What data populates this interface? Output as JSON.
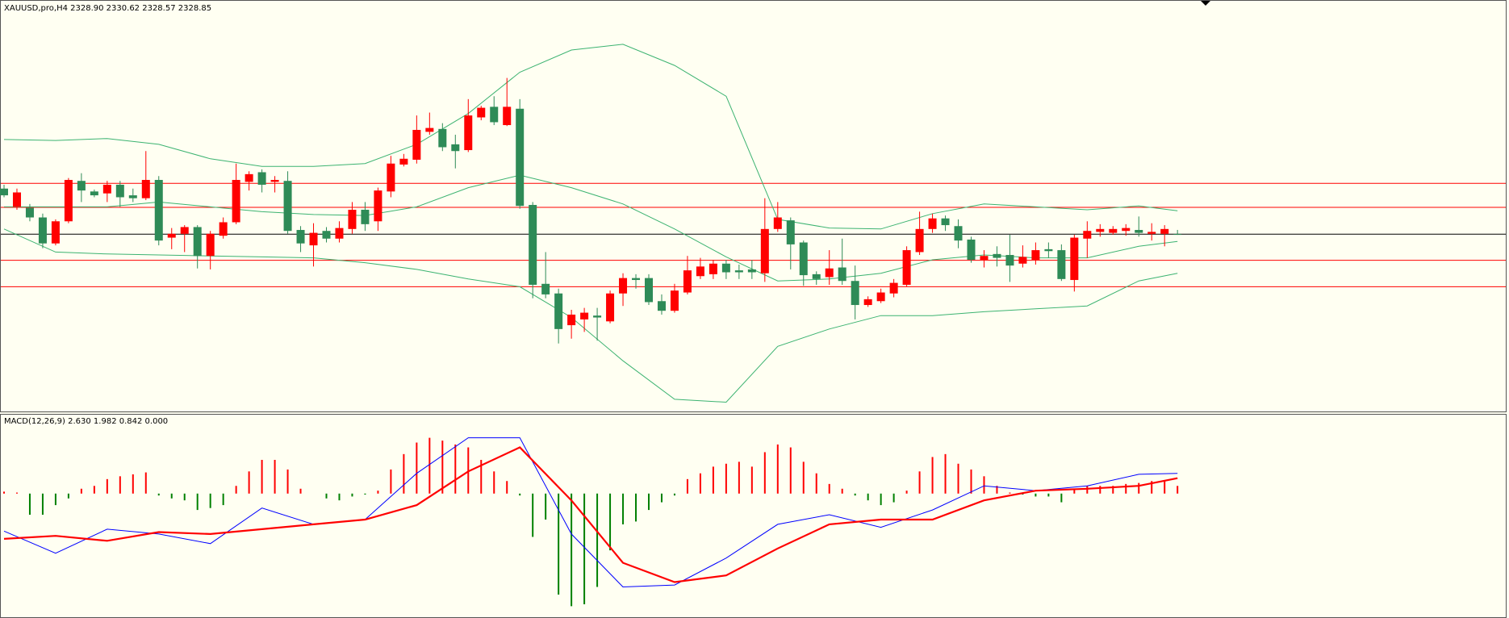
{
  "chart_data": [
    {
      "type": "candlestick",
      "title": "XAUUSD,pro,H4  2328.90 2330.62 2328.57 2328.85",
      "up_color": "#ff0000",
      "down_color": "#2e8b57",
      "ylim": [
        2255,
        2425
      ],
      "levels": {
        "values": [
          2350,
          2340,
          2318,
          2307
        ],
        "color": "#ff0000"
      },
      "bid_line": {
        "value": 2328.85,
        "color": "#000000"
      },
      "ohlc": [
        [
          2347.8,
          2349.4,
          2344.2,
          2345.0
        ],
        [
          2340.2,
          2347.8,
          2339.0,
          2346.2
        ],
        [
          2339.8,
          2341.4,
          2334.2,
          2335.8
        ],
        [
          2335.8,
          2337.4,
          2323.0,
          2325.0
        ],
        [
          2325.0,
          2335.0,
          2324.2,
          2334.2
        ],
        [
          2334.2,
          2352.2,
          2333.4,
          2351.4
        ],
        [
          2351.0,
          2354.2,
          2342.2,
          2347.0
        ],
        [
          2346.6,
          2347.4,
          2344.2,
          2345.0
        ],
        [
          2345.8,
          2351.0,
          2342.2,
          2349.4
        ],
        [
          2349.4,
          2351.0,
          2340.2,
          2344.2
        ],
        [
          2345.0,
          2347.8,
          2342.2,
          2343.8
        ],
        [
          2343.8,
          2363.4,
          2343.0,
          2351.4
        ],
        [
          2351.4,
          2353.0,
          2324.2,
          2326.2
        ],
        [
          2327.4,
          2331.4,
          2322.6,
          2329.0
        ],
        [
          2329.0,
          2332.6,
          2321.4,
          2331.8
        ],
        [
          2331.8,
          2332.6,
          2314.6,
          2319.8
        ],
        [
          2319.8,
          2330.2,
          2314.2,
          2329.0
        ],
        [
          2328.2,
          2335.8,
          2327.0,
          2333.8
        ],
        [
          2333.8,
          2358.2,
          2333.0,
          2351.4
        ],
        [
          2350.6,
          2355.0,
          2347.0,
          2353.8
        ],
        [
          2354.6,
          2355.8,
          2346.2,
          2349.4
        ],
        [
          2350.6,
          2353.0,
          2346.2,
          2351.4
        ],
        [
          2351.0,
          2355.0,
          2329.0,
          2330.2
        ],
        [
          2330.6,
          2332.2,
          2321.4,
          2325.0
        ],
        [
          2324.2,
          2333.4,
          2315.4,
          2329.4
        ],
        [
          2330.2,
          2331.8,
          2325.4,
          2327.0
        ],
        [
          2327.0,
          2334.2,
          2325.4,
          2331.4
        ],
        [
          2331.0,
          2342.2,
          2329.0,
          2339.0
        ],
        [
          2339.0,
          2342.2,
          2330.2,
          2333.0
        ],
        [
          2334.2,
          2348.2,
          2330.2,
          2347.0
        ],
        [
          2346.6,
          2361.4,
          2344.2,
          2358.2
        ],
        [
          2357.8,
          2362.2,
          2357.0,
          2360.2
        ],
        [
          2359.8,
          2378.2,
          2358.2,
          2372.2
        ],
        [
          2371.4,
          2379.4,
          2370.2,
          2373.0
        ],
        [
          2372.6,
          2375.0,
          2363.4,
          2365.0
        ],
        [
          2366.2,
          2370.2,
          2356.2,
          2363.4
        ],
        [
          2363.8,
          2385.0,
          2363.0,
          2378.2
        ],
        [
          2377.4,
          2382.2,
          2376.2,
          2381.4
        ],
        [
          2381.8,
          2386.2,
          2374.2,
          2375.4
        ],
        [
          2374.2,
          2393.8,
          2373.8,
          2381.8
        ],
        [
          2381.0,
          2385.0,
          2339.4,
          2340.6
        ],
        [
          2341.0,
          2342.2,
          2302.2,
          2307.8
        ],
        [
          2308.2,
          2321.4,
          2302.2,
          2303.8
        ],
        [
          2304.2,
          2306.2,
          2283.4,
          2289.4
        ],
        [
          2291.0,
          2297.4,
          2285.4,
          2295.4
        ],
        [
          2293.4,
          2298.2,
          2288.2,
          2296.2
        ],
        [
          2295.0,
          2298.2,
          2284.6,
          2294.2
        ],
        [
          2292.6,
          2305.4,
          2291.8,
          2304.2
        ],
        [
          2304.2,
          2312.6,
          2299.0,
          2310.6
        ],
        [
          2310.6,
          2312.2,
          2306.2,
          2309.8
        ],
        [
          2310.6,
          2312.2,
          2299.4,
          2300.6
        ],
        [
          2301.0,
          2303.8,
          2295.4,
          2297.0
        ],
        [
          2297.0,
          2308.2,
          2296.2,
          2305.4
        ],
        [
          2304.6,
          2319.8,
          2303.8,
          2313.8
        ],
        [
          2311.4,
          2319.0,
          2310.2,
          2315.4
        ],
        [
          2312.2,
          2318.2,
          2310.2,
          2316.6
        ],
        [
          2316.6,
          2318.2,
          2310.2,
          2313.0
        ],
        [
          2313.8,
          2316.2,
          2310.2,
          2313.0
        ],
        [
          2314.2,
          2318.2,
          2310.2,
          2313.0
        ],
        [
          2312.6,
          2343.8,
          2309.0,
          2331.0
        ],
        [
          2331.0,
          2342.2,
          2329.8,
          2335.8
        ],
        [
          2334.6,
          2335.8,
          2314.2,
          2324.6
        ],
        [
          2325.4,
          2326.2,
          2307.4,
          2311.8
        ],
        [
          2312.2,
          2313.4,
          2307.8,
          2310.2
        ],
        [
          2311.0,
          2322.2,
          2307.8,
          2314.6
        ],
        [
          2315.0,
          2327.0,
          2307.8,
          2309.4
        ],
        [
          2309.4,
          2315.8,
          2293.4,
          2299.4
        ],
        [
          2299.4,
          2303.0,
          2298.6,
          2301.8
        ],
        [
          2301.0,
          2306.2,
          2300.2,
          2304.6
        ],
        [
          2304.2,
          2310.2,
          2302.6,
          2308.6
        ],
        [
          2307.8,
          2323.8,
          2307.0,
          2322.2
        ],
        [
          2321.4,
          2338.2,
          2320.2,
          2331.0
        ],
        [
          2331.0,
          2337.4,
          2329.4,
          2335.4
        ],
        [
          2335.4,
          2336.6,
          2330.2,
          2332.6
        ],
        [
          2332.2,
          2335.0,
          2323.0,
          2326.2
        ],
        [
          2326.6,
          2327.8,
          2317.0,
          2318.2
        ],
        [
          2318.2,
          2322.2,
          2315.0,
          2319.8
        ],
        [
          2320.6,
          2323.8,
          2315.4,
          2319.0
        ],
        [
          2320.2,
          2328.6,
          2309.0,
          2315.8
        ],
        [
          2316.6,
          2324.2,
          2315.0,
          2319.4
        ],
        [
          2318.2,
          2325.4,
          2316.2,
          2322.2
        ],
        [
          2322.6,
          2325.4,
          2319.0,
          2321.8
        ],
        [
          2322.2,
          2324.6,
          2309.4,
          2310.2
        ],
        [
          2309.8,
          2328.6,
          2305.0,
          2327.4
        ],
        [
          2327.0,
          2334.2,
          2319.0,
          2330.2
        ],
        [
          2329.8,
          2333.0,
          2327.8,
          2331.0
        ],
        [
          2329.4,
          2332.2,
          2328.6,
          2331.0
        ],
        [
          2330.2,
          2333.0,
          2328.2,
          2331.4
        ],
        [
          2330.6,
          2336.2,
          2327.8,
          2329.4
        ],
        [
          2329.0,
          2333.4,
          2326.2,
          2329.8
        ],
        [
          2329.0,
          2332.6,
          2323.8,
          2331.0
        ],
        [
          2328.9,
          2330.62,
          2328.57,
          2328.85
        ]
      ],
      "bands": {
        "color": "#3cb371",
        "x": [
          0,
          4,
          8,
          12,
          16,
          20,
          24,
          28,
          32,
          36,
          40,
          44,
          48,
          52,
          56,
          60,
          64,
          68,
          72,
          76,
          80,
          84,
          88,
          91
        ],
        "upper": [
          2368.2,
          2367.8,
          2368.6,
          2366.2,
          2360.2,
          2357.0,
          2357.0,
          2358.2,
          2366.2,
          2379.0,
          2396.2,
          2405.4,
          2407.8,
          2399.0,
          2386.2,
          2335.0,
          2331.4,
          2331.0,
          2337.4,
          2341.4,
          2340.2,
          2339.0,
          2340.6,
          2338.6
        ],
        "middle": [
          2340.2,
          2340.2,
          2340.2,
          2342.2,
          2340.2,
          2338.2,
          2337.0,
          2336.6,
          2340.2,
          2348.2,
          2353.4,
          2348.2,
          2341.4,
          2331.0,
          2319.4,
          2309.4,
          2310.2,
          2312.6,
          2318.2,
          2320.2,
          2319.0,
          2319.0,
          2323.8,
          2325.8
        ],
        "lower": [
          2331.0,
          2321.4,
          2320.6,
          2320.2,
          2319.8,
          2319.4,
          2319.0,
          2317.0,
          2314.2,
          2310.2,
          2307.0,
          2294.2,
          2276.2,
          2260.2,
          2259.0,
          2282.2,
          2289.4,
          2295.0,
          2295.0,
          2296.6,
          2297.8,
          2299.0,
          2309.4,
          2312.6
        ]
      }
    },
    {
      "type": "macd",
      "title": "MACD(12,26,9) 2.630 1.982 0.842 0.000",
      "ylim": [
        -16.125,
        10.25
      ],
      "pos_color": "#ff0000",
      "neg_color": "#008000",
      "histogram": [
        0.25,
        0.13,
        -2.75,
        -2.75,
        -1.5,
        -0.63,
        0.63,
        1.0,
        1.88,
        2.25,
        2.5,
        2.75,
        -0.25,
        -0.63,
        -0.88,
        -2.13,
        -1.88,
        -1.5,
        1.0,
        2.88,
        4.38,
        4.38,
        3.13,
        0.63,
        0.0,
        -0.63,
        -0.88,
        -0.38,
        -0.13,
        0.38,
        3.13,
        5.13,
        6.63,
        7.25,
        6.88,
        6.38,
        6.0,
        4.38,
        2.88,
        1.63,
        -0.25,
        -5.63,
        -3.38,
        -13.13,
        -14.63,
        -14.38,
        -12.13,
        -7.38,
        -4.0,
        -3.63,
        -2.13,
        -1.13,
        -0.25,
        1.88,
        2.63,
        3.5,
        3.88,
        4.13,
        3.5,
        5.38,
        6.38,
        6.0,
        4.13,
        2.63,
        1.25,
        0.63,
        -0.25,
        -0.88,
        -1.5,
        -1.13,
        0.38,
        2.88,
        4.75,
        5.13,
        3.88,
        3.13,
        2.25,
        1.0,
        0.13,
        -0.13,
        -0.38,
        -0.38,
        -1.13,
        0.63,
        1.0,
        1.0,
        1.0,
        1.25,
        1.38,
        1.63,
        1.63,
        1.0
      ],
      "x": [
        0,
        4,
        8,
        12,
        16,
        20,
        24,
        28,
        32,
        36,
        40,
        44,
        48,
        52,
        56,
        60,
        64,
        68,
        72,
        76,
        80,
        84,
        88,
        91
      ],
      "series": [
        {
          "color": "#0000ff",
          "values": [
            -4.88,
            -7.75,
            -4.63,
            -5.25,
            -6.5,
            -1.88,
            -4.0,
            -3.38,
            2.63,
            7.25,
            7.25,
            -5.25,
            -12.13,
            -11.88,
            -8.38,
            -4.0,
            -2.75,
            -4.38,
            -2.13,
            1.0,
            0.38,
            1.0,
            2.5,
            2.63
          ]
        },
        {
          "color": "#ff0000",
          "values": [
            -5.88,
            -5.5,
            -6.13,
            -5.0,
            -5.25,
            -4.63,
            -4.0,
            -3.38,
            -1.5,
            2.88,
            6.0,
            -0.88,
            -9.0,
            -11.5,
            -10.63,
            -7.13,
            -4.0,
            -3.38,
            -3.38,
            -0.88,
            0.38,
            0.63,
            1.0,
            2.0
          ]
        }
      ]
    }
  ]
}
